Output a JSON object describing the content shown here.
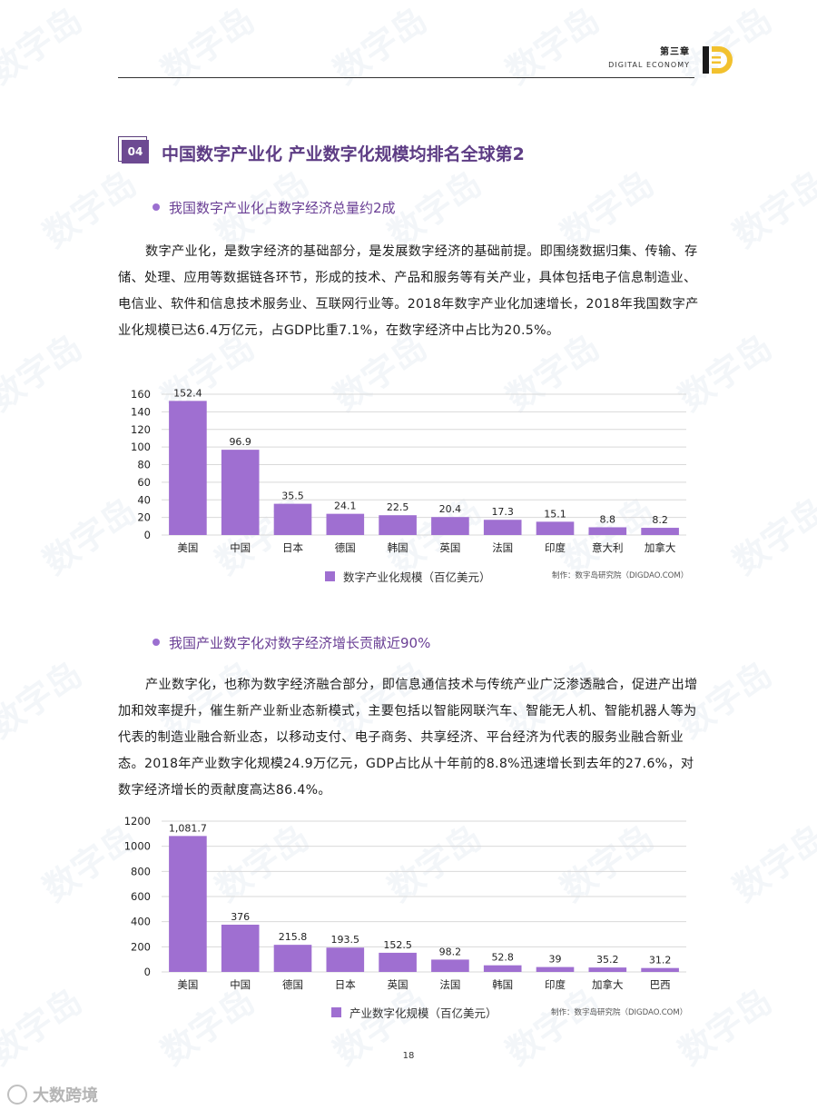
{
  "header": {
    "chapter": "第三章",
    "chapter_en": "DIGITAL ECONOMY",
    "logo_letter": "D"
  },
  "section": {
    "number": "04",
    "title": "中国数字产业化 产业数字化规模均排名全球第2"
  },
  "part1": {
    "bullet": "我国数字产业化占数字经济总量约2成",
    "paragraph": "数字产业化，是数字经济的基础部分，是发展数字经济的基础前提。即围绕数据归集、传输、存储、处理、应用等数据链各环节，形成的技术、产品和服务等有关产业，具体包括电子信息制造业、电信业、软件和信息技术服务业、互联网行业等。2018年数字产业化加速增长，2018年我国数字产业化规模已达6.4万亿元，占GDP比重7.1%，在数字经济中占比为20.5%。"
  },
  "part2": {
    "bullet": "我国产业数字化对数字经济增长贡献近90%",
    "paragraph": "产业数字化，也称为数字经济融合部分，即信息通信技术与传统产业广泛渗透融合，促进产出增加和效率提升，催生新产业新业态新模式，主要包括以智能网联汽车、智能无人机、智能机器人等为代表的制造业融合新业态，以移动支付、电子商务、共享经济、平台经济为代表的服务业融合新业态。2018年产业数字化规模24.9万亿元，GDP占比从十年前的8.8%迅速增长到去年的27.6%，对数字经济增长的贡献度高达86.4%。"
  },
  "chart_data": [
    {
      "type": "bar",
      "categories": [
        "美国",
        "中国",
        "日本",
        "德国",
        "韩国",
        "英国",
        "法国",
        "印度",
        "意大利",
        "加拿大"
      ],
      "values": [
        152.4,
        96.9,
        35.5,
        24.1,
        22.5,
        20.4,
        17.3,
        15.1,
        8.8,
        8.2
      ],
      "value_labels": [
        "152.4",
        "96.9",
        "35.5",
        "24.1",
        "22.5",
        "20.4",
        "17.3",
        "15.1",
        "8.8",
        "8.2"
      ],
      "yticks": [
        "0",
        "20",
        "40",
        "60",
        "80",
        "100",
        "120",
        "140",
        "160"
      ],
      "ylim": [
        0,
        160
      ],
      "legend": "数字产业化规模（百亿美元）",
      "credit": "制作：数字岛研究院（DIGDAO.COM）",
      "grid": true,
      "color": "#9f6fd1"
    },
    {
      "type": "bar",
      "categories": [
        "美国",
        "中国",
        "德国",
        "日本",
        "英国",
        "法国",
        "韩国",
        "印度",
        "加拿大",
        "巴西"
      ],
      "values": [
        1081.7,
        376,
        215.8,
        193.5,
        152.5,
        98.2,
        52.8,
        39,
        35.2,
        31.2
      ],
      "value_labels": [
        "1,081.7",
        "376",
        "215.8",
        "193.5",
        "152.5",
        "98.2",
        "52.8",
        "39",
        "35.2",
        "31.2"
      ],
      "yticks": [
        "0",
        "200",
        "400",
        "600",
        "800",
        "1000",
        "1200"
      ],
      "ylim": [
        0,
        1200
      ],
      "legend": "产业数字化规模（百亿美元）",
      "credit": "制作：数字岛研究院（DIGDAO.COM）",
      "grid": true,
      "color": "#9f6fd1"
    }
  ],
  "footer": {
    "page_number": "18",
    "brand": "大数跨境"
  }
}
